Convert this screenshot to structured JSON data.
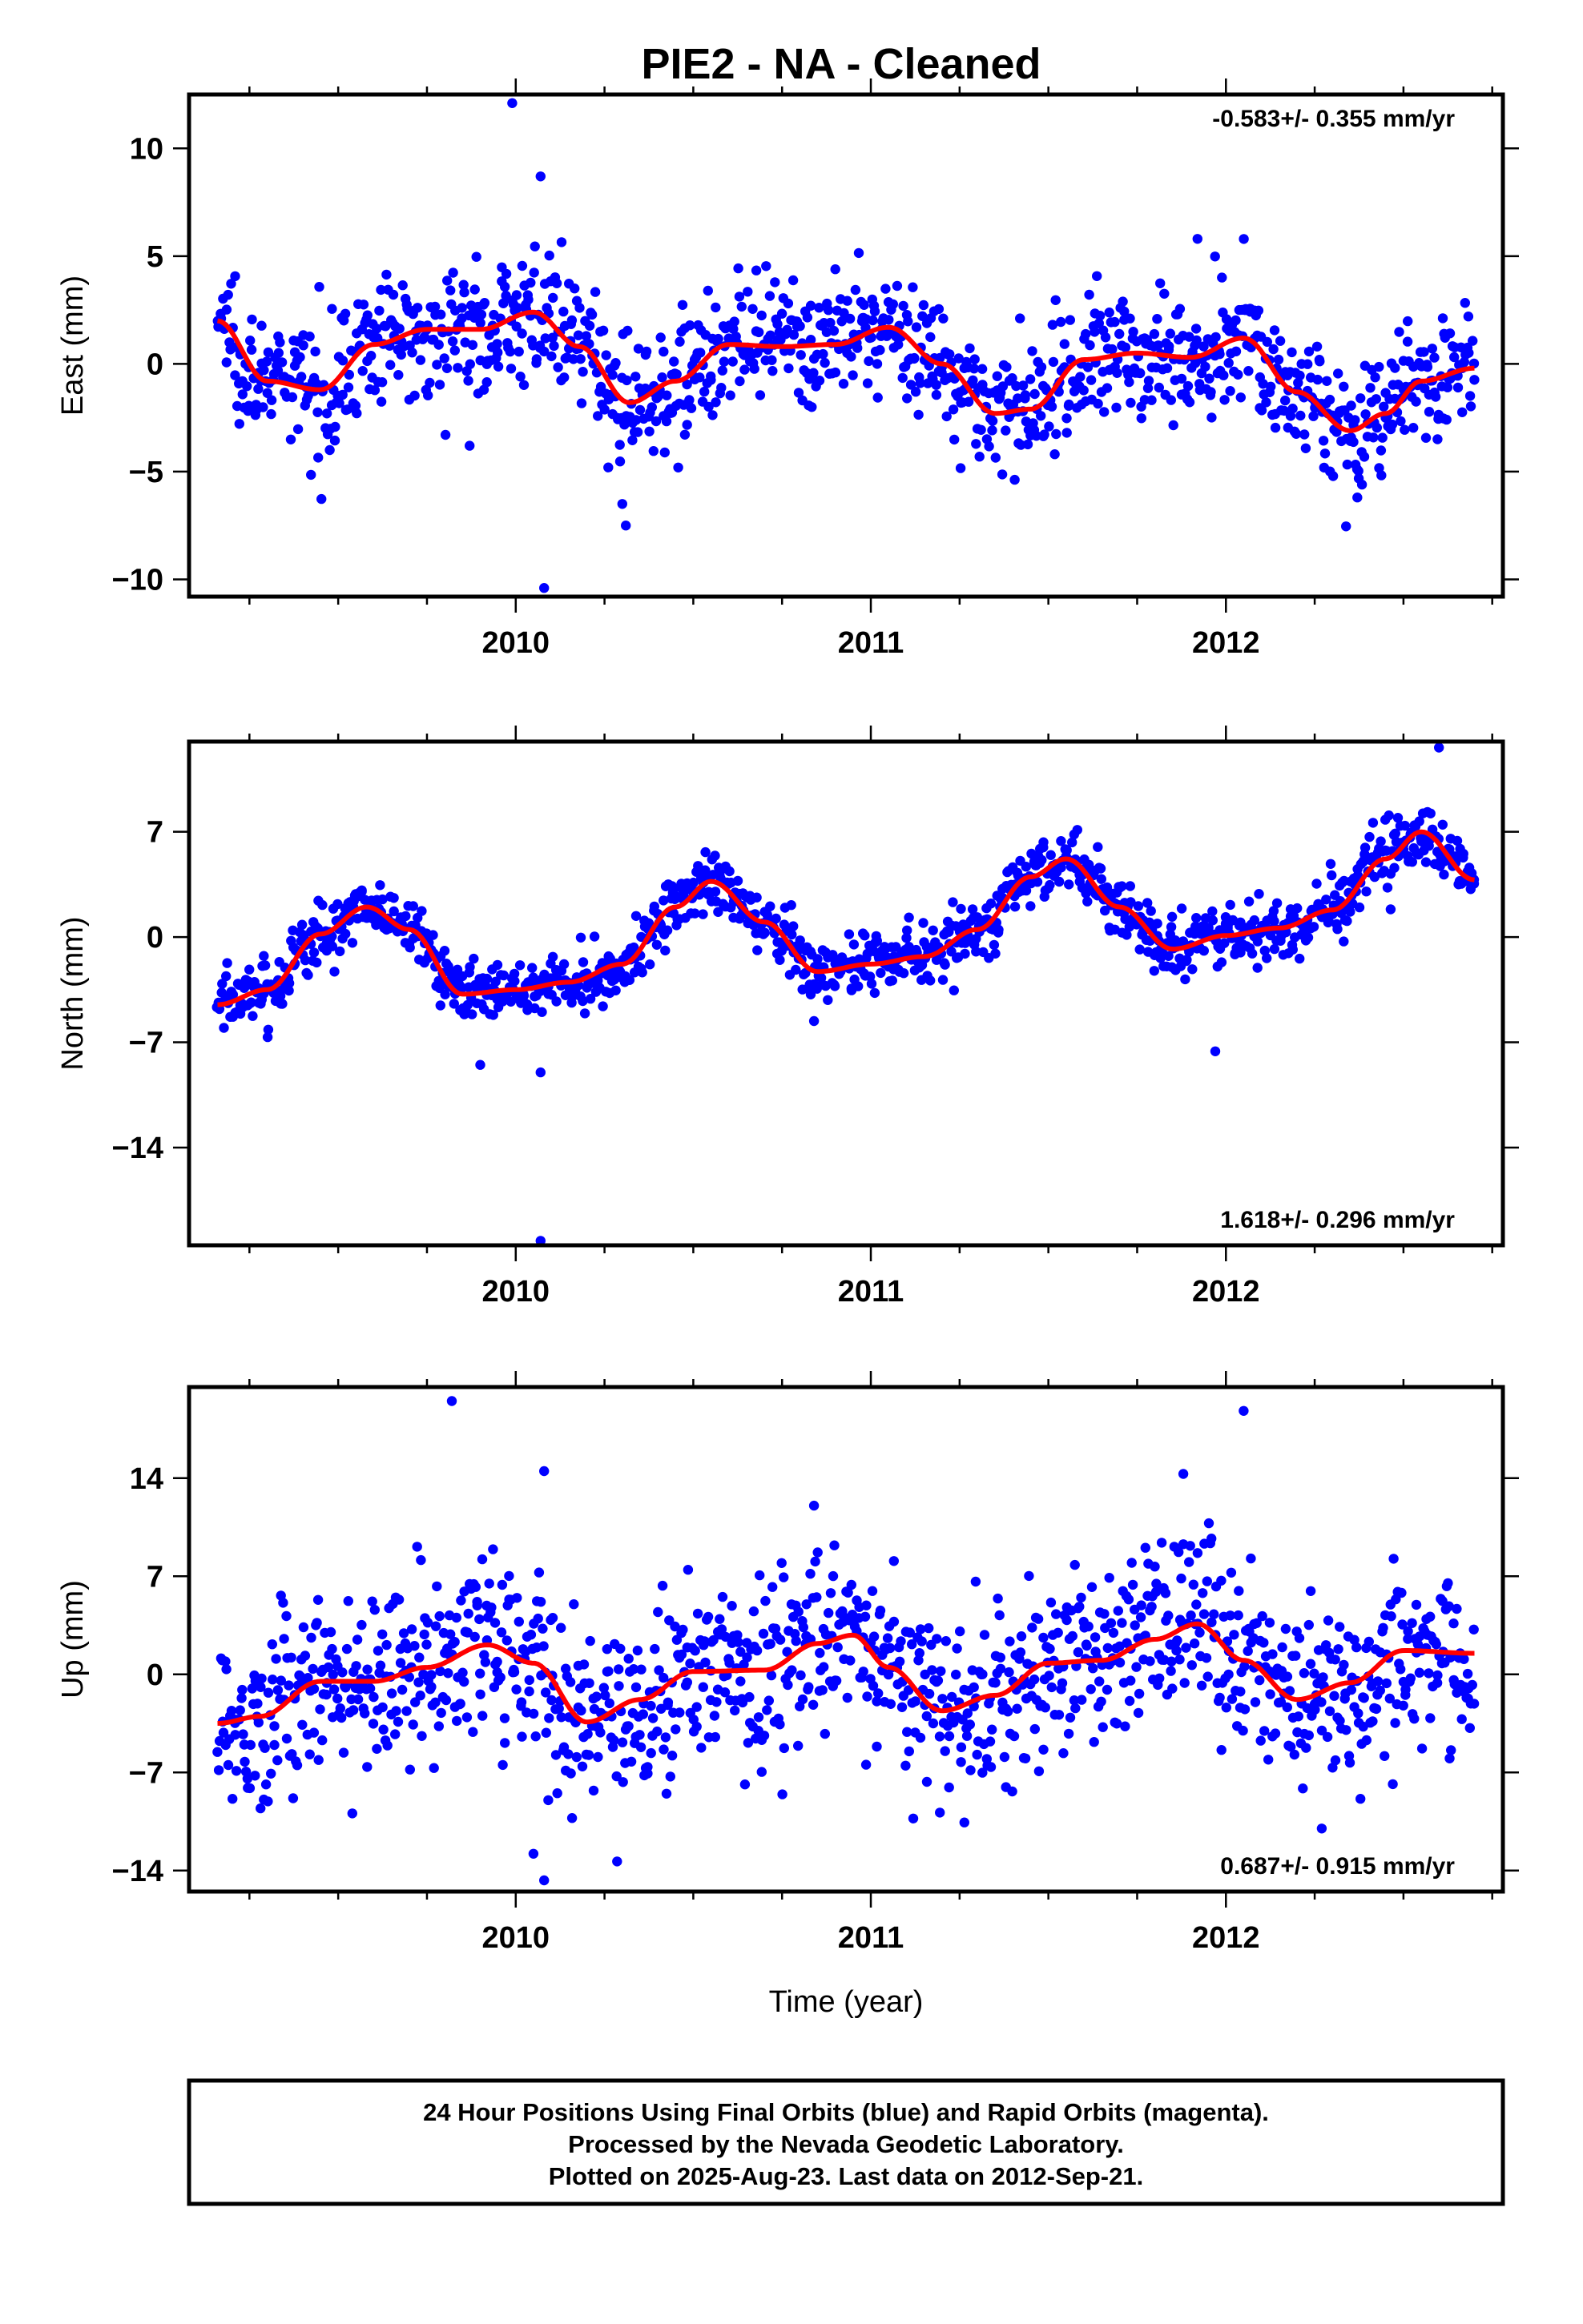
{
  "title": "PIE2  - NA - Cleaned",
  "footer": [
    "24 Hour Positions Using Final Orbits (blue) and Rapid Orbits (magenta).",
    "Processed by the Nevada Geodetic Laboratory.",
    "Plotted on 2025-Aug-23. Last data on 2012-Sep-21."
  ],
  "colors": {
    "points": "#0000ff",
    "fit": "#ff0000",
    "frame": "#000000"
  },
  "chart_data": [
    {
      "type": "scatter",
      "ylabel": "East (mm)",
      "xlabel": "",
      "rate": "-0.583+/- 0.355 mm/yr",
      "rate_position": "top-right",
      "xlim": [
        2009.08,
        2012.78
      ],
      "ylim": [
        -10.8,
        12.5
      ],
      "xticks": [
        2010,
        2011,
        2012
      ],
      "yticks": [
        10,
        5,
        0,
        -5,
        -10
      ],
      "fit": {
        "x": [
          2009.16,
          2009.3,
          2009.45,
          2009.6,
          2009.75,
          2009.9,
          2010.05,
          2010.18,
          2010.32,
          2010.45,
          2010.6,
          2010.75,
          2010.9,
          2011.05,
          2011.2,
          2011.35,
          2011.45,
          2011.6,
          2011.75,
          2011.9,
          2012.05,
          2012.2,
          2012.35,
          2012.45,
          2012.55,
          2012.7
        ],
        "y": [
          2.0,
          -0.8,
          -1.2,
          0.9,
          1.6,
          1.6,
          2.4,
          0.8,
          -1.8,
          -0.8,
          0.9,
          0.8,
          0.9,
          1.7,
          0.0,
          -2.3,
          -2.1,
          0.2,
          0.5,
          0.3,
          1.2,
          -1.3,
          -3.1,
          -2.3,
          -0.8,
          -0.2
        ]
      },
      "outliers": [
        [
          2009.99,
          12.1
        ],
        [
          2010.07,
          8.7
        ],
        [
          2010.08,
          -10.4
        ],
        [
          2010.31,
          -7.5
        ],
        [
          2010.3,
          -6.5
        ],
        [
          2011.92,
          5.8
        ],
        [
          2012.37,
          -6.2
        ],
        [
          2009.87,
          -3.8
        ]
      ]
    },
    {
      "type": "scatter",
      "ylabel": "North (mm)",
      "xlabel": "",
      "rate": "1.618+/- 0.296 mm/yr",
      "rate_position": "bottom-right",
      "xlim": [
        2009.08,
        2012.78
      ],
      "ylim": [
        -20.5,
        13.0
      ],
      "xticks": [
        2010,
        2011,
        2012
      ],
      "yticks": [
        7,
        0,
        -7,
        -14
      ],
      "fit": {
        "x": [
          2009.16,
          2009.3,
          2009.45,
          2009.58,
          2009.7,
          2009.85,
          2010.0,
          2010.15,
          2010.3,
          2010.45,
          2010.55,
          2010.7,
          2010.85,
          2011.0,
          2011.15,
          2011.3,
          2011.45,
          2011.55,
          2011.7,
          2011.85,
          2012.0,
          2012.15,
          2012.3,
          2012.45,
          2012.55,
          2012.7
        ],
        "y": [
          -4.5,
          -3.5,
          0.2,
          2.0,
          0.5,
          -3.8,
          -3.5,
          -3.0,
          -1.8,
          2.0,
          3.7,
          1.0,
          -2.3,
          -1.8,
          -1.3,
          0.5,
          4.0,
          5.2,
          2.0,
          -0.8,
          0.1,
          0.6,
          1.8,
          5.2,
          7.0,
          3.8
        ]
      },
      "outliers": [
        [
          2012.6,
          12.6
        ],
        [
          2010.07,
          -20.2
        ],
        [
          2010.07,
          -9.0
        ],
        [
          2011.97,
          -7.6
        ],
        [
          2009.9,
          -8.5
        ]
      ]
    },
    {
      "type": "scatter",
      "ylabel": "Up (mm)",
      "xlabel": "Time (year)",
      "rate": "0.687+/- 0.915 mm/yr",
      "rate_position": "bottom-right",
      "xlim": [
        2009.08,
        2012.78
      ],
      "ylim": [
        -15.5,
        20.5
      ],
      "xticks": [
        2010,
        2011,
        2012
      ],
      "yticks": [
        14,
        7,
        0,
        -7,
        -14
      ],
      "fit": {
        "x": [
          2009.16,
          2009.28,
          2009.45,
          2009.6,
          2009.75,
          2009.92,
          2010.05,
          2010.2,
          2010.35,
          2010.5,
          2010.7,
          2010.85,
          2010.95,
          2011.05,
          2011.2,
          2011.35,
          2011.5,
          2011.65,
          2011.8,
          2011.92,
          2012.05,
          2012.2,
          2012.35,
          2012.5,
          2012.7
        ],
        "y": [
          -3.5,
          -3.0,
          -0.5,
          -0.5,
          0.5,
          2.1,
          0.8,
          -3.4,
          -1.8,
          0.2,
          0.3,
          2.2,
          2.8,
          0.5,
          -2.6,
          -1.5,
          0.8,
          1.0,
          2.5,
          3.6,
          1.0,
          -1.8,
          -0.6,
          1.7,
          1.5
        ]
      },
      "outliers": [
        [
          2009.82,
          19.5
        ],
        [
          2012.05,
          18.8
        ],
        [
          2010.08,
          14.5
        ],
        [
          2010.08,
          -14.7
        ],
        [
          2011.88,
          14.3
        ],
        [
          2012.27,
          -11.0
        ],
        [
          2010.05,
          -12.8
        ],
        [
          2012.63,
          -6.0
        ]
      ]
    }
  ]
}
